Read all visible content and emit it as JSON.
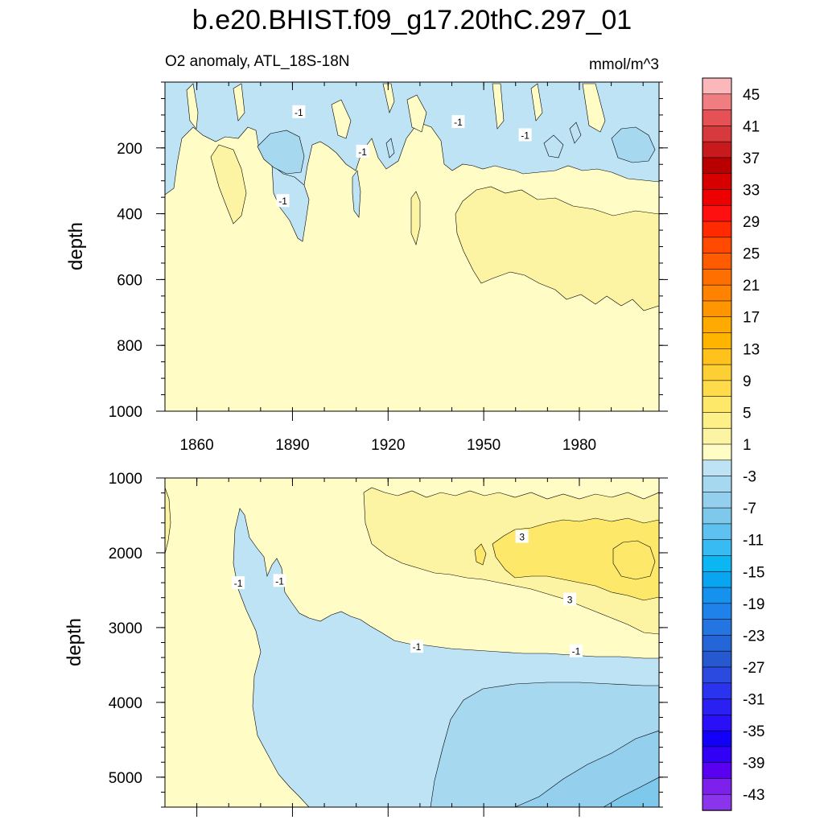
{
  "title": "b.e20.BHIST.f09_g17.20thC.297_01",
  "units": "mmol/m^3",
  "colors": {
    "anom_neg1": "#bde3f5",
    "anom_neg3": "#a6d8f0",
    "anom_pos1": "#fffcc6",
    "anom_pos3": "#fdf4a3",
    "anom_pos5": "#fde86a",
    "contour": "#000000"
  },
  "chart_data": [
    {
      "type": "contour",
      "panel": "upper",
      "subtitle_left": "O2 anomaly, ATL_18S-18N",
      "subtitle_right": "mmol/m^3",
      "ylabel": "depth",
      "xlabel": "",
      "xlim": [
        1850,
        2005
      ],
      "ylim": [
        1000,
        0
      ],
      "x_ticks": [
        1860,
        1890,
        1920,
        1950,
        1980
      ],
      "y_ticks": [
        200,
        400,
        600,
        800,
        1000
      ],
      "contour_labels": [
        {
          "text": "-1",
          "x": 1892,
          "y": 90
        },
        {
          "text": "-1",
          "x": 1912,
          "y": 210
        },
        {
          "text": "-1",
          "x": 1887,
          "y": 360
        },
        {
          "text": "-1",
          "x": 1942,
          "y": 120
        },
        {
          "text": "-1",
          "x": 1963,
          "y": 160
        }
      ],
      "regions": [
        {
          "level": "below -1",
          "description": "upper 300 m, broken patches"
        },
        {
          "level": "above 1",
          "description": "400-650 m after 1940"
        }
      ]
    },
    {
      "type": "contour",
      "panel": "lower",
      "subtitle_left": "",
      "subtitle_right": "",
      "ylabel": "depth",
      "xlabel": "",
      "xlim": [
        1850,
        2005
      ],
      "ylim": [
        5400,
        1000
      ],
      "x_ticks": [
        1860,
        1890,
        1920,
        1950,
        1980
      ],
      "y_ticks": [
        1000,
        2000,
        3000,
        4000,
        5000
      ],
      "contour_labels": [
        {
          "text": "-1",
          "x": 1873,
          "y": 2400
        },
        {
          "text": "-1",
          "x": 1886,
          "y": 2370
        },
        {
          "text": "3",
          "x": 1962,
          "y": 1780
        },
        {
          "text": "3",
          "x": 1977,
          "y": 2620
        },
        {
          "text": "-1",
          "x": 1929,
          "y": 3250
        },
        {
          "text": "-1",
          "x": 1979,
          "y": 3310
        }
      ]
    }
  ],
  "colorbar": {
    "labels": [
      "45",
      "41",
      "37",
      "33",
      "29",
      "25",
      "21",
      "17",
      "13",
      "9",
      "5",
      "1",
      "-3",
      "-7",
      "-11",
      "-15",
      "-19",
      "-23",
      "-27",
      "-31",
      "-35",
      "-39",
      "-43"
    ],
    "colors": [
      "#fcb7bb",
      "#f07d80",
      "#e55155",
      "#d63a3d",
      "#c81a1c",
      "#b80000",
      "#d60000",
      "#ec0000",
      "#ff1010",
      "#ff2a00",
      "#ff4a00",
      "#ff5b00",
      "#ff6f00",
      "#ff8200",
      "#ff9600",
      "#ffaa00",
      "#ffb400",
      "#ffc21c",
      "#fcd034",
      "#fddb4a",
      "#fde86a",
      "#fdf088",
      "#fdf4a3",
      "#fffcc6",
      "#bde3f5",
      "#a6d8f0",
      "#94d0ee",
      "#7ec8ec",
      "#5ec1ef",
      "#38bbf2",
      "#0cb6f2",
      "#0aa5f0",
      "#1592ee",
      "#1e82ea",
      "#2475e2",
      "#2466d8",
      "#2658cf",
      "#2a4ae0",
      "#2a34ee",
      "#2a20f2",
      "#2a10f8",
      "#1200f8",
      "#3200f4",
      "#5a00f0",
      "#7d20ec",
      "#8a35ec"
    ]
  }
}
